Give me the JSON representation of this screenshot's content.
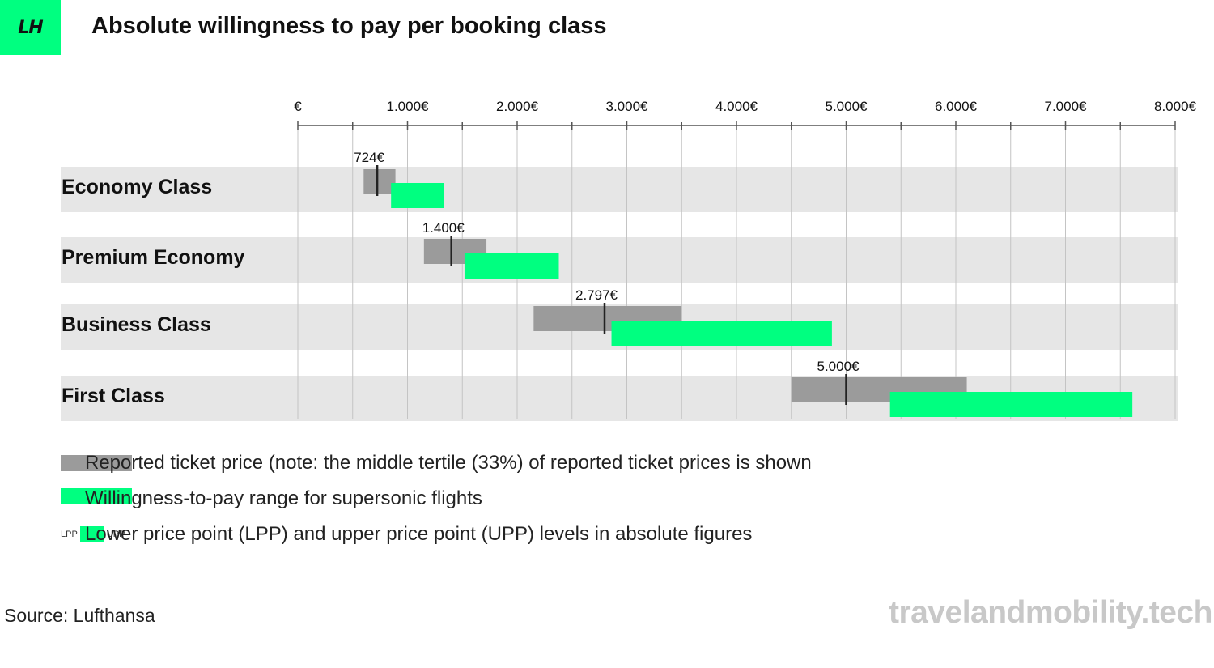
{
  "logo_text": "LH",
  "title": "Absolute willingness to pay per booking class",
  "colors": {
    "accent": "#00FF80",
    "reported": "#9B9B9B",
    "row_band": "#E6E6E6",
    "grid": "#C4C4C4",
    "axis": "#555555"
  },
  "chart_data": {
    "type": "bar",
    "orientation": "horizontal",
    "title": "Absolute willingness to pay per booking class",
    "xlim": [
      0,
      8000
    ],
    "tick_values": [
      0,
      1000,
      2000,
      3000,
      4000,
      5000,
      6000,
      7000,
      8000
    ],
    "tick_labels": [
      "€",
      "1.000€",
      "2.000€",
      "3.000€",
      "4.000€",
      "5.000€",
      "6.000€",
      "7.000€",
      "8.000€"
    ],
    "axis_position": "top",
    "grid": true,
    "categories": [
      "Economy Class",
      "Premium Economy",
      "Business Class",
      "First Class"
    ],
    "series": [
      {
        "name": "Reported ticket price (note: the middle tertile (33%) of reported ticket prices is shown",
        "ranges": [
          [
            600,
            890
          ],
          [
            1150,
            1720
          ],
          [
            2150,
            3500
          ],
          [
            4500,
            6100
          ]
        ]
      },
      {
        "name": "Willingness-to-pay range for supersonic flights",
        "ranges": [
          [
            850,
            1330
          ],
          [
            1520,
            2380
          ],
          [
            2860,
            4870
          ],
          [
            5400,
            7610
          ]
        ]
      }
    ],
    "median_markers": [
      {
        "value": 724,
        "label": "724€"
      },
      {
        "value": 1400,
        "label": "1.400€"
      },
      {
        "value": 2797,
        "label": "2.797€"
      },
      {
        "value": 5000,
        "label": "5.000€"
      }
    ]
  },
  "legend": {
    "reported": "Reported ticket price (note: the middle tertile (33%) of reported ticket prices is shown",
    "wtp": "Willingness-to-pay range for supersonic flights",
    "lpp_short": "LPP",
    "upp_short": "UPP",
    "lpp_upp": "Lower price point (LPP) and upper price point (UPP) levels in absolute figures"
  },
  "source": "Source: Lufthansa",
  "watermark": "travelandmobility.tech"
}
